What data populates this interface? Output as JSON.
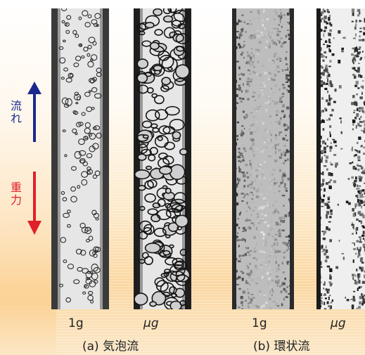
{
  "flow_label": {
    "line1": "流",
    "line2": "れ",
    "color": "#1a2a8c"
  },
  "gravity_label": {
    "line1": "重",
    "line2": "力",
    "color": "#e0202a"
  },
  "tubes": [
    {
      "label": "1g",
      "style": "bubbly-1g"
    },
    {
      "label": "μg",
      "style": "bubbly-ug"
    },
    {
      "label": "1g",
      "style": "annular-1g"
    },
    {
      "label": "μg",
      "style": "annular-ug"
    }
  ],
  "captions": {
    "a": "(a) 気泡流",
    "b": "(b) 環状流"
  }
}
